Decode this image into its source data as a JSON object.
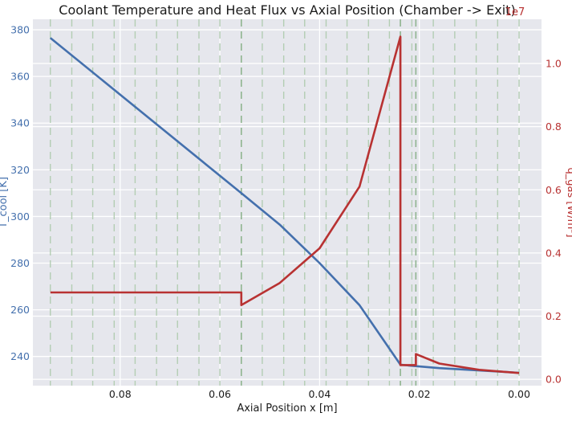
{
  "chart_data": {
    "type": "line",
    "title": "Coolant Temperature and Heat Flux vs Axial Position (Chamber -> Exit)",
    "xlabel": "Axial Position x [m]",
    "ylabel_left": "T_cool [K]",
    "ylabel_right": "q_gas [W/m²]",
    "right_axis_offset_label": "1e7",
    "xlim": [
      0.0975,
      -0.0045
    ],
    "x_inverted": true,
    "ylim_left": [
      227.5,
      384.5
    ],
    "ylim_right": [
      -0.02,
      1.14
    ],
    "x_ticks": [
      0.08,
      0.06,
      0.04,
      0.02,
      0.0
    ],
    "x_tick_labels": [
      "0.08",
      "0.06",
      "0.04",
      "0.02",
      "0.00"
    ],
    "y_left_ticks": [
      240,
      260,
      280,
      300,
      320,
      340,
      360,
      380
    ],
    "y_left_tick_labels": [
      "240",
      "260",
      "280",
      "300",
      "320",
      "340",
      "360",
      "380"
    ],
    "y_right_ticks": [
      0.0,
      0.2,
      0.4,
      0.6,
      0.8,
      1.0
    ],
    "y_right_tick_labels": [
      "0.0",
      "0.2",
      "0.4",
      "0.6",
      "0.8",
      "1.0"
    ],
    "grid": true,
    "vertical_dashed_lines_x": [
      0.094,
      0.0897,
      0.0855,
      0.0812,
      0.077,
      0.0727,
      0.0685,
      0.0642,
      0.06,
      0.0557,
      0.0515,
      0.0472,
      0.043,
      0.0387,
      0.0345,
      0.0302,
      0.026,
      0.0238,
      0.0215,
      0.0207,
      0.0172,
      0.0129,
      0.0086,
      0.0043,
      0.0
    ],
    "highlight_dashed_lines_x": [
      0.0557,
      0.0238,
      0.0207
    ],
    "series": [
      {
        "name": "T_cool",
        "axis": "left",
        "color": "#4470ad",
        "x": [
          0.094,
          0.0557,
          0.048,
          0.04,
          0.032,
          0.0238,
          0.0215,
          0.016,
          0.008,
          0.0
        ],
        "y": [
          376.5,
          310,
          296.5,
          280,
          262,
          236.5,
          236,
          235,
          234,
          233
        ]
      },
      {
        "name": "q_gas",
        "axis": "right",
        "color": "#b83232",
        "x": [
          0.094,
          0.0557,
          0.0557,
          0.048,
          0.04,
          0.032,
          0.0238,
          0.0238,
          0.0207,
          0.0207,
          0.016,
          0.008,
          0.0
        ],
        "y": [
          0.275,
          0.275,
          0.235,
          0.305,
          0.415,
          0.61,
          1.085,
          0.045,
          0.045,
          0.08,
          0.05,
          0.03,
          0.02
        ]
      }
    ]
  }
}
